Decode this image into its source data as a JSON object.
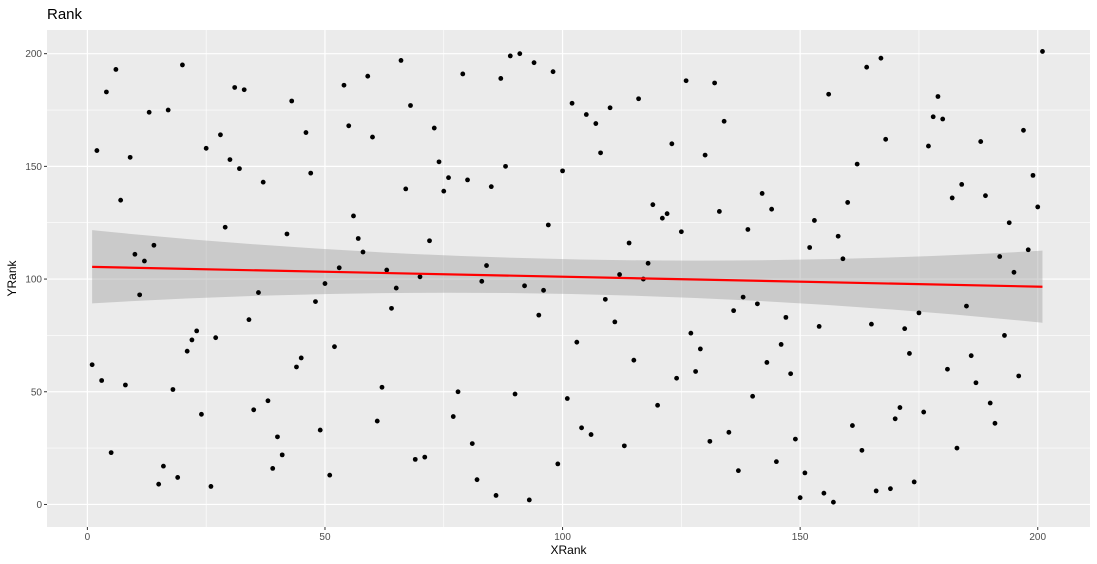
{
  "chart_data": {
    "type": "scatter",
    "title": "Rank",
    "xlabel": "XRank",
    "ylabel": "YRank",
    "xlim": [
      -8.5,
      211
    ],
    "ylim": [
      -10,
      210.5
    ],
    "x_ticks": [
      0,
      50,
      100,
      150,
      200
    ],
    "y_ticks": [
      0,
      50,
      100,
      150,
      200
    ],
    "x_tick_labels": [
      "0",
      "50",
      "100",
      "150",
      "200"
    ],
    "y_tick_labels": [
      "0",
      "50",
      "100",
      "150",
      "200"
    ],
    "grid": true,
    "legend": "none",
    "colors": {
      "panel_background": "#ebebeb",
      "grid": "#ffffff",
      "points": "#000000",
      "fit_line": "#ff0000",
      "confidence_band": "#999999"
    },
    "points": [
      [
        1,
        62
      ],
      [
        2,
        157
      ],
      [
        3,
        55
      ],
      [
        4,
        183
      ],
      [
        5,
        23
      ],
      [
        6,
        193
      ],
      [
        7,
        135
      ],
      [
        8,
        53
      ],
      [
        9,
        154
      ],
      [
        10,
        111
      ],
      [
        11,
        93
      ],
      [
        12,
        108
      ],
      [
        13,
        174
      ],
      [
        14,
        115
      ],
      [
        15,
        9
      ],
      [
        16,
        17
      ],
      [
        17,
        175
      ],
      [
        18,
        51
      ],
      [
        19,
        12
      ],
      [
        20,
        195
      ],
      [
        21,
        68
      ],
      [
        22,
        73
      ],
      [
        23,
        77
      ],
      [
        24,
        40
      ],
      [
        25,
        158
      ],
      [
        26,
        8
      ],
      [
        27,
        74
      ],
      [
        28,
        164
      ],
      [
        29,
        123
      ],
      [
        30,
        153
      ],
      [
        31,
        185
      ],
      [
        32,
        149
      ],
      [
        33,
        184
      ],
      [
        34,
        82
      ],
      [
        35,
        42
      ],
      [
        36,
        94
      ],
      [
        37,
        143
      ],
      [
        38,
        46
      ],
      [
        39,
        16
      ],
      [
        40,
        30
      ],
      [
        41,
        22
      ],
      [
        42,
        120
      ],
      [
        43,
        179
      ],
      [
        44,
        61
      ],
      [
        45,
        65
      ],
      [
        46,
        165
      ],
      [
        47,
        147
      ],
      [
        48,
        90
      ],
      [
        49,
        33
      ],
      [
        50,
        98
      ],
      [
        51,
        13
      ],
      [
        52,
        70
      ],
      [
        53,
        105
      ],
      [
        54,
        186
      ],
      [
        55,
        168
      ],
      [
        56,
        128
      ],
      [
        57,
        118
      ],
      [
        58,
        112
      ],
      [
        59,
        190
      ],
      [
        60,
        163
      ],
      [
        61,
        37
      ],
      [
        62,
        52
      ],
      [
        63,
        104
      ],
      [
        64,
        87
      ],
      [
        65,
        96
      ],
      [
        66,
        197
      ],
      [
        67,
        140
      ],
      [
        68,
        177
      ],
      [
        69,
        20
      ],
      [
        70,
        101
      ],
      [
        71,
        21
      ],
      [
        72,
        117
      ],
      [
        73,
        167
      ],
      [
        74,
        152
      ],
      [
        75,
        139
      ],
      [
        76,
        145
      ],
      [
        77,
        39
      ],
      [
        78,
        50
      ],
      [
        79,
        191
      ],
      [
        80,
        144
      ],
      [
        81,
        27
      ],
      [
        82,
        11
      ],
      [
        83,
        99
      ],
      [
        84,
        106
      ],
      [
        85,
        141
      ],
      [
        86,
        4
      ],
      [
        87,
        189
      ],
      [
        88,
        150
      ],
      [
        89,
        199
      ],
      [
        90,
        49
      ],
      [
        91,
        200
      ],
      [
        92,
        97
      ],
      [
        93,
        2
      ],
      [
        94,
        196
      ],
      [
        95,
        84
      ],
      [
        96,
        95
      ],
      [
        97,
        124
      ],
      [
        98,
        192
      ],
      [
        99,
        18
      ],
      [
        100,
        148
      ],
      [
        101,
        47
      ],
      [
        102,
        178
      ],
      [
        103,
        72
      ],
      [
        104,
        34
      ],
      [
        105,
        173
      ],
      [
        106,
        31
      ],
      [
        107,
        169
      ],
      [
        108,
        156
      ],
      [
        109,
        91
      ],
      [
        110,
        176
      ],
      [
        111,
        81
      ],
      [
        112,
        102
      ],
      [
        113,
        26
      ],
      [
        114,
        116
      ],
      [
        115,
        64
      ],
      [
        116,
        180
      ],
      [
        117,
        100
      ],
      [
        118,
        107
      ],
      [
        119,
        133
      ],
      [
        120,
        44
      ],
      [
        121,
        127
      ],
      [
        122,
        129
      ],
      [
        123,
        160
      ],
      [
        124,
        56
      ],
      [
        125,
        121
      ],
      [
        126,
        188
      ],
      [
        127,
        76
      ],
      [
        128,
        59
      ],
      [
        129,
        69
      ],
      [
        130,
        155
      ],
      [
        131,
        28
      ],
      [
        132,
        187
      ],
      [
        133,
        130
      ],
      [
        134,
        170
      ],
      [
        135,
        32
      ],
      [
        136,
        86
      ],
      [
        137,
        15
      ],
      [
        138,
        92
      ],
      [
        139,
        122
      ],
      [
        140,
        48
      ],
      [
        141,
        89
      ],
      [
        142,
        138
      ],
      [
        143,
        63
      ],
      [
        144,
        131
      ],
      [
        145,
        19
      ],
      [
        146,
        71
      ],
      [
        147,
        83
      ],
      [
        148,
        58
      ],
      [
        149,
        29
      ],
      [
        150,
        3
      ],
      [
        151,
        14
      ],
      [
        152,
        114
      ],
      [
        153,
        126
      ],
      [
        154,
        79
      ],
      [
        155,
        5
      ],
      [
        156,
        182
      ],
      [
        157,
        1
      ],
      [
        158,
        119
      ],
      [
        159,
        109
      ],
      [
        160,
        134
      ],
      [
        161,
        35
      ],
      [
        162,
        151
      ],
      [
        163,
        24
      ],
      [
        164,
        194
      ],
      [
        165,
        80
      ],
      [
        166,
        6
      ],
      [
        167,
        198
      ],
      [
        168,
        162
      ],
      [
        169,
        7
      ],
      [
        170,
        38
      ],
      [
        171,
        43
      ],
      [
        172,
        78
      ],
      [
        173,
        67
      ],
      [
        174,
        10
      ],
      [
        175,
        85
      ],
      [
        176,
        41
      ],
      [
        177,
        159
      ],
      [
        178,
        172
      ],
      [
        179,
        181
      ],
      [
        180,
        171
      ],
      [
        181,
        60
      ],
      [
        182,
        136
      ],
      [
        183,
        25
      ],
      [
        184,
        142
      ],
      [
        185,
        88
      ],
      [
        186,
        66
      ],
      [
        187,
        54
      ],
      [
        188,
        161
      ],
      [
        189,
        137
      ],
      [
        190,
        45
      ],
      [
        191,
        36
      ],
      [
        192,
        110
      ],
      [
        193,
        75
      ],
      [
        194,
        125
      ],
      [
        195,
        103
      ],
      [
        196,
        57
      ],
      [
        197,
        166
      ],
      [
        198,
        113
      ],
      [
        199,
        146
      ],
      [
        200,
        132
      ],
      [
        201,
        201
      ]
    ],
    "fit": {
      "method": "linear",
      "x_range": [
        1,
        201
      ],
      "y_start": 105.4,
      "y_end": 96.6,
      "ci_upper_start": 121.7,
      "ci_lower_start": 89.2,
      "ci_upper_mid": 108.8,
      "ci_lower_mid": 93.4,
      "ci_upper_end": 112.6,
      "ci_lower_end": 80.6
    }
  }
}
